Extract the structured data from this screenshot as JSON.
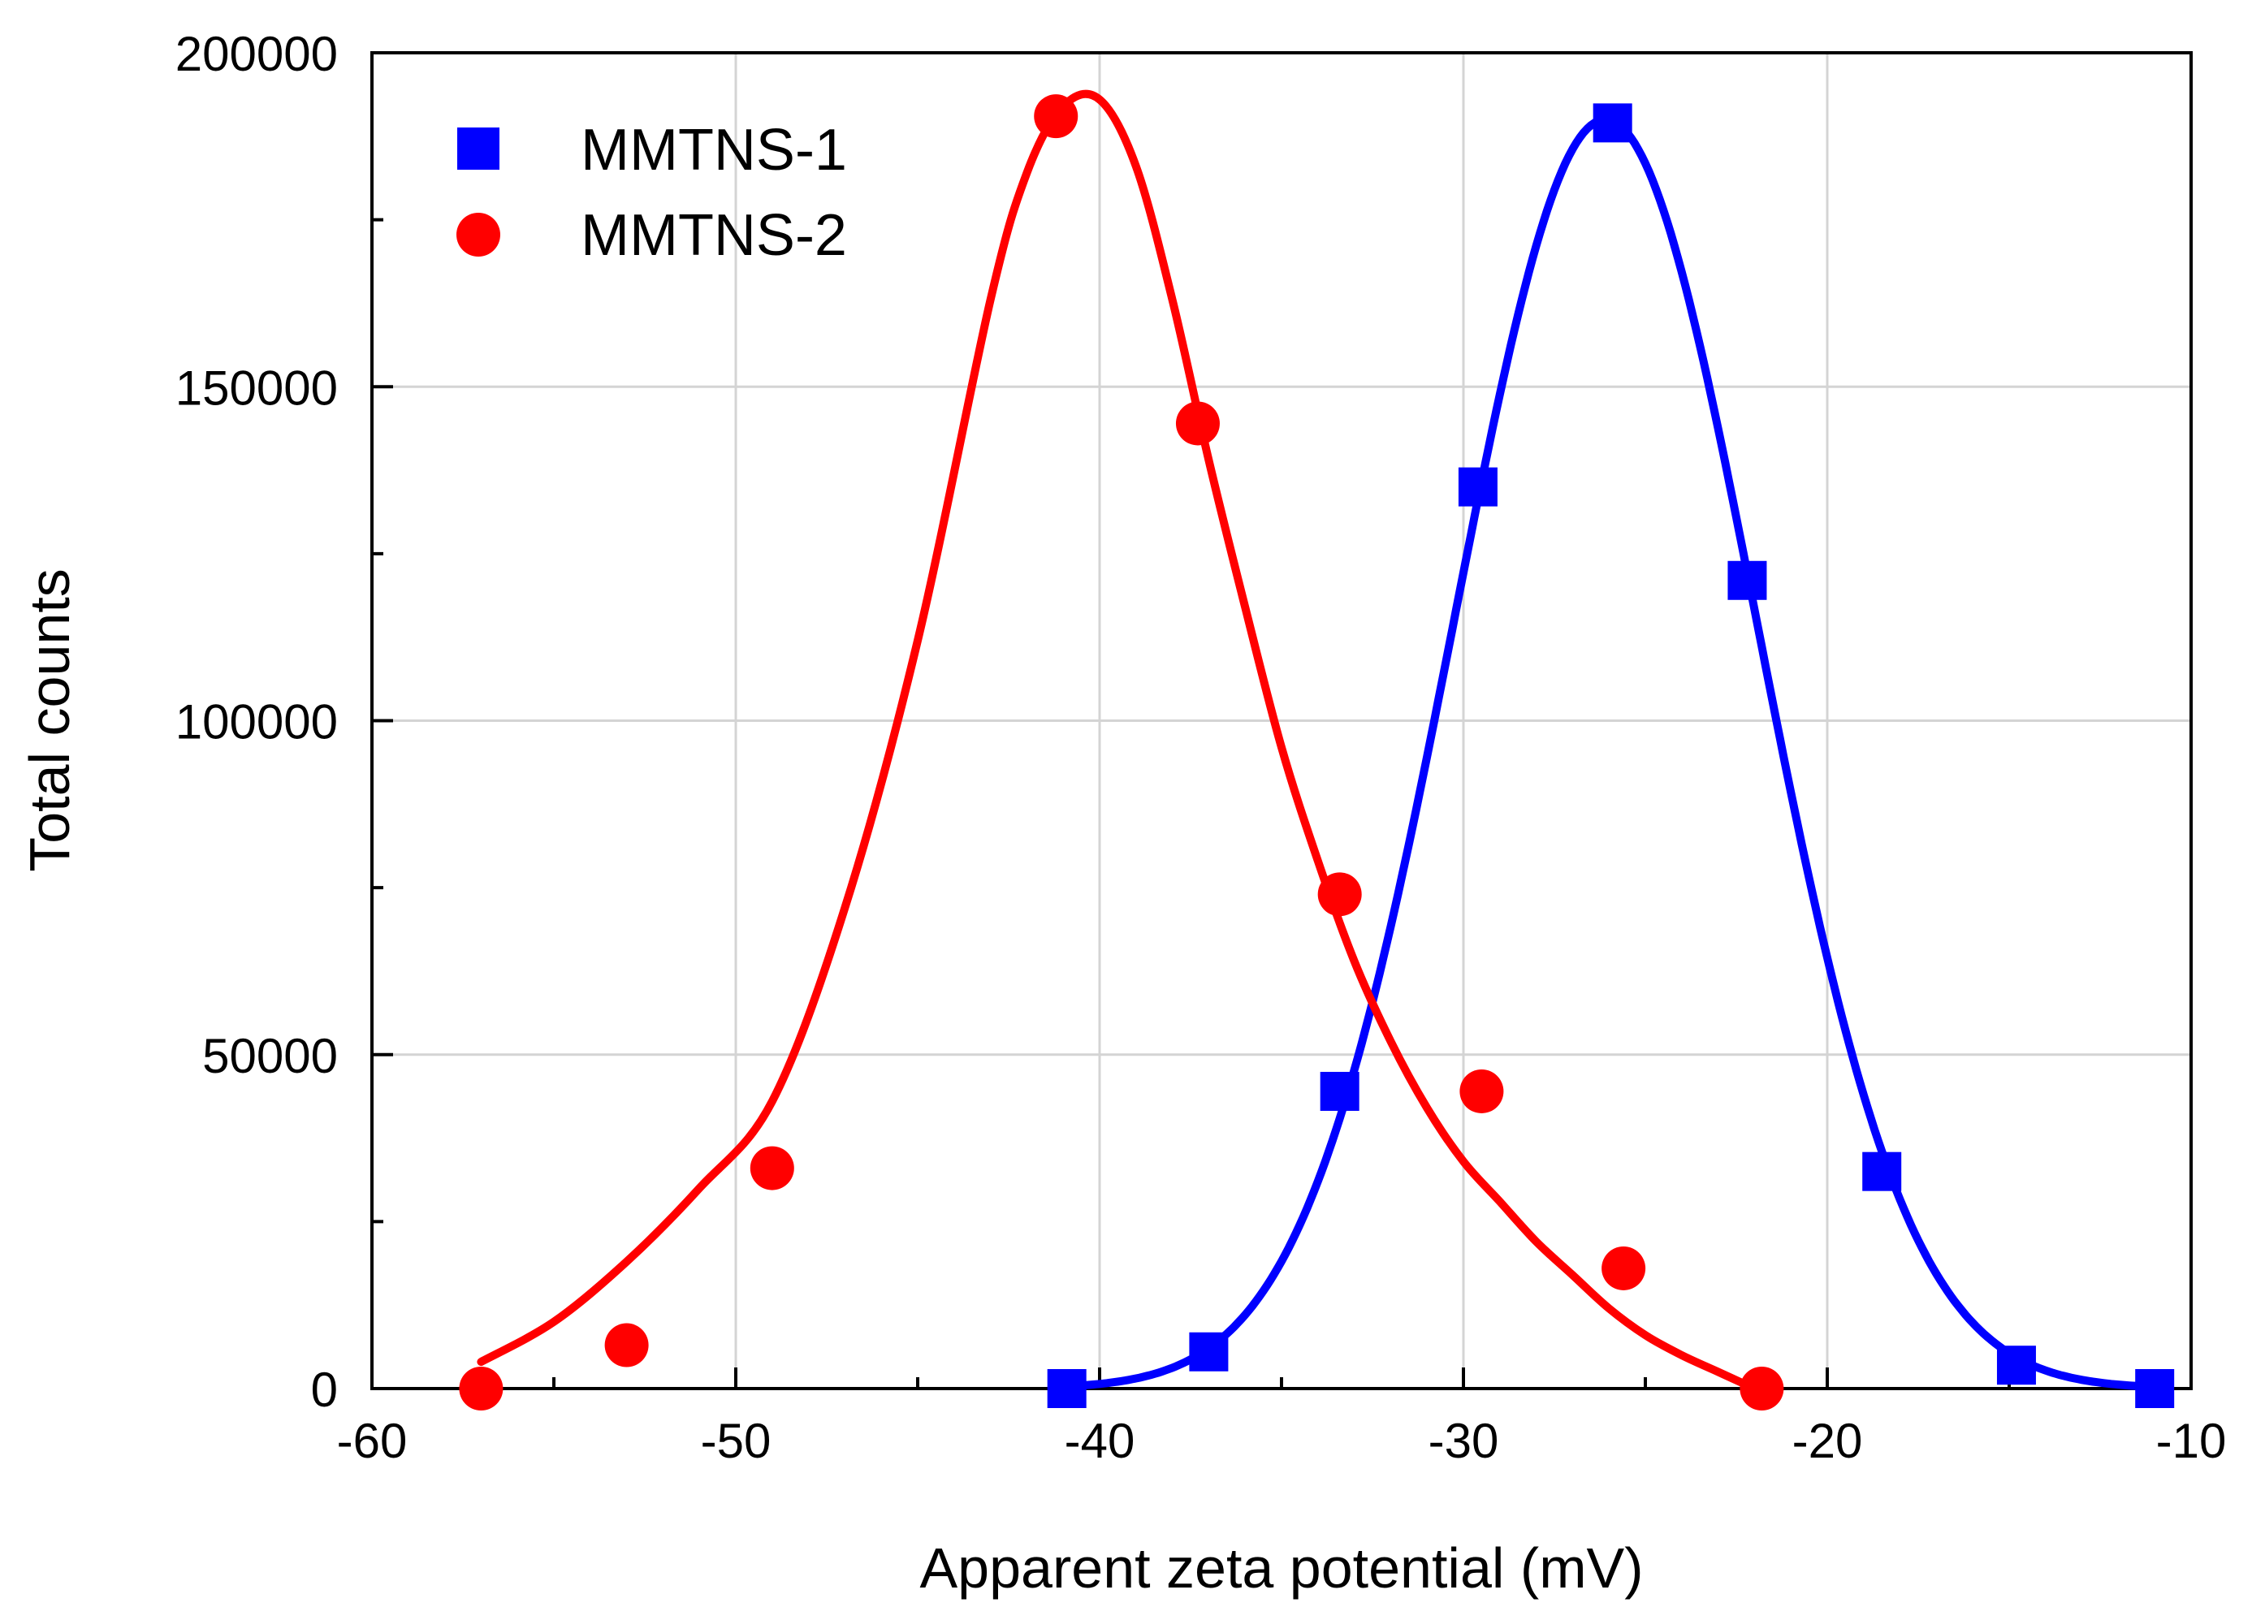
{
  "chart_data": {
    "type": "scatter",
    "title": "",
    "xlabel": "Apparent zeta potential (mV)",
    "ylabel": "Total counts",
    "xlim": [
      -60,
      -10
    ],
    "ylim": [
      0,
      200000
    ],
    "xticks": [
      -60,
      -50,
      -40,
      -30,
      -20,
      -10
    ],
    "yticks": [
      0,
      50000,
      100000,
      150000,
      200000
    ],
    "grid": true,
    "legend_position": "top-left",
    "series": [
      {
        "name": "MMTNS-1",
        "marker": "square",
        "color": "#0000ff",
        "x": [
          -40.9,
          -37.0,
          -33.4,
          -29.6,
          -25.9,
          -22.2,
          -18.5,
          -14.8,
          -11.0
        ],
        "y": [
          0,
          5500,
          44500,
          135000,
          189500,
          121000,
          32500,
          3500,
          0
        ],
        "fit": {
          "kind": "gaussian",
          "amplitude": 190000,
          "center": -26.1,
          "sigma": 4.15,
          "x_range": [
            -41.0,
            -11.0
          ]
        }
      },
      {
        "name": "MMTNS-2",
        "marker": "circle",
        "color": "#ff0000",
        "x": [
          -57.0,
          -53.0,
          -49.0,
          -41.2,
          -37.3,
          -33.4,
          -29.5,
          -25.6,
          -21.8
        ],
        "y": [
          0,
          6500,
          33000,
          190500,
          144500,
          74000,
          44500,
          18000,
          0
        ],
        "fit": {
          "kind": "curve",
          "x": [
            -57.0,
            -55.0,
            -53.0,
            -51.0,
            -49.0,
            -47.0,
            -45.0,
            -43.0,
            -42.0,
            -41.0,
            -40.0,
            -39.0,
            -38.0,
            -37.0,
            -36.0,
            -35.0,
            -34.0,
            -33.0,
            -32.0,
            -31.0,
            -30.0,
            -29.0,
            -28.0,
            -27.0,
            -26.0,
            -25.0,
            -24.0,
            -23.0,
            -22.0
          ],
          "y": [
            4000,
            10000,
            19000,
            30000,
            43000,
            72000,
            112000,
            163000,
            182000,
            192000,
            193000,
            183000,
            163000,
            139000,
            117000,
            96000,
            79000,
            64000,
            52000,
            42000,
            34000,
            28000,
            22000,
            17000,
            12000,
            8000,
            5000,
            2500,
            0
          ]
        }
      }
    ]
  }
}
